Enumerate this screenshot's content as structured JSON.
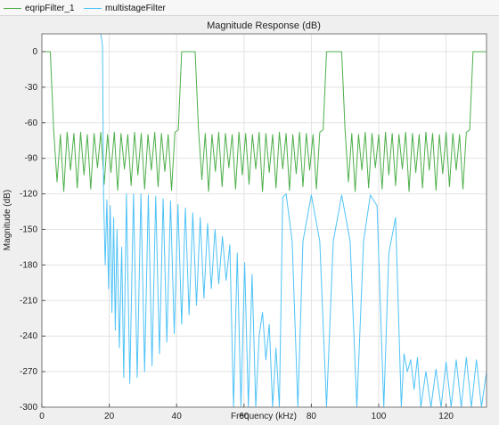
{
  "legend": {
    "series": [
      {
        "label": "eqripFilter_1",
        "color": "#4daf4a"
      },
      {
        "label": "multistageFilter",
        "color": "#4fc3f7"
      }
    ]
  },
  "chart_data": {
    "type": "line",
    "title": "Magnitude Response (dB)",
    "xlabel": "Frequency (kHz)",
    "ylabel": "Magnitude (dB)",
    "xlim": [
      0,
      132
    ],
    "ylim": [
      -300,
      15
    ],
    "xticks": [
      0,
      20,
      40,
      60,
      80,
      100,
      120
    ],
    "yticks": [
      0,
      -30,
      -60,
      -90,
      -120,
      -150,
      -180,
      -210,
      -240,
      -270,
      -300
    ],
    "grid": true,
    "legend_position": "top-left",
    "series": [
      {
        "name": "eqripFilter_1",
        "color": "#4daf4a",
        "points": [
          [
            0,
            0
          ],
          [
            2.5,
            0
          ],
          [
            3.5,
            -66
          ],
          [
            4.5,
            -110
          ],
          [
            5.5,
            -70
          ],
          [
            6.5,
            -118
          ],
          [
            7.5,
            -68
          ],
          [
            8.5,
            -100
          ],
          [
            9.5,
            -69
          ],
          [
            10.5,
            -115
          ],
          [
            11.5,
            -68
          ],
          [
            12.5,
            -104
          ],
          [
            13.5,
            -70
          ],
          [
            14.5,
            -116
          ],
          [
            15.5,
            -69
          ],
          [
            16.5,
            -98
          ],
          [
            17.5,
            -68
          ],
          [
            18.5,
            -112
          ],
          [
            19.5,
            -70
          ],
          [
            20.5,
            -102
          ],
          [
            21.5,
            -68
          ],
          [
            22.5,
            -117
          ],
          [
            23.5,
            -69
          ],
          [
            24.5,
            -99
          ],
          [
            25.5,
            -70
          ],
          [
            26.5,
            -113
          ],
          [
            27.5,
            -68
          ],
          [
            28.5,
            -104
          ],
          [
            29.5,
            -69
          ],
          [
            30.5,
            -116
          ],
          [
            31.5,
            -70
          ],
          [
            32.5,
            -100
          ],
          [
            33.5,
            -68
          ],
          [
            34.5,
            -114
          ],
          [
            35.5,
            -69
          ],
          [
            36.5,
            -101
          ],
          [
            37.5,
            -70
          ],
          [
            38.5,
            -117
          ],
          [
            39.5,
            -68
          ],
          [
            40.5,
            -66
          ],
          [
            41.5,
            0
          ],
          [
            45.5,
            0
          ],
          [
            46.5,
            -66
          ],
          [
            47.5,
            -108
          ],
          [
            48.5,
            -69
          ],
          [
            49.5,
            -118
          ],
          [
            50.5,
            -70
          ],
          [
            51.5,
            -101
          ],
          [
            52.5,
            -68
          ],
          [
            53.5,
            -114
          ],
          [
            54.5,
            -69
          ],
          [
            55.5,
            -98
          ],
          [
            56.5,
            -70
          ],
          [
            57.5,
            -116
          ],
          [
            58.5,
            -68
          ],
          [
            59.5,
            -104
          ],
          [
            60.5,
            -69
          ],
          [
            61.5,
            -112
          ],
          [
            62.5,
            -70
          ],
          [
            63.5,
            -99
          ],
          [
            64.5,
            -68
          ],
          [
            65.5,
            -118
          ],
          [
            66.5,
            -69
          ],
          [
            67.5,
            -102
          ],
          [
            68.5,
            -70
          ],
          [
            69.5,
            -115
          ],
          [
            70.5,
            -68
          ],
          [
            71.5,
            -99
          ],
          [
            72.5,
            -69
          ],
          [
            73.5,
            -117
          ],
          [
            74.5,
            -70
          ],
          [
            75.5,
            -103
          ],
          [
            76.5,
            -68
          ],
          [
            77.5,
            -114
          ],
          [
            78.5,
            -69
          ],
          [
            79.5,
            -100
          ],
          [
            80.5,
            -70
          ],
          [
            81.5,
            -116
          ],
          [
            82.5,
            -68
          ],
          [
            83.5,
            -66
          ],
          [
            84.5,
            0
          ],
          [
            89,
            0
          ],
          [
            90,
            -66
          ],
          [
            91,
            -110
          ],
          [
            92,
            -69
          ],
          [
            93,
            -118
          ],
          [
            94,
            -70
          ],
          [
            95,
            -100
          ],
          [
            96,
            -68
          ],
          [
            97,
            -115
          ],
          [
            98,
            -69
          ],
          [
            99,
            -98
          ],
          [
            100,
            -70
          ],
          [
            101,
            -116
          ],
          [
            102,
            -68
          ],
          [
            103,
            -104
          ],
          [
            104,
            -69
          ],
          [
            105,
            -113
          ],
          [
            106,
            -70
          ],
          [
            107,
            -99
          ],
          [
            108,
            -68
          ],
          [
            109,
            -118
          ],
          [
            110,
            -69
          ],
          [
            111,
            -102
          ],
          [
            112,
            -70
          ],
          [
            113,
            -115
          ],
          [
            114,
            -68
          ],
          [
            115,
            -100
          ],
          [
            116,
            -69
          ],
          [
            117,
            -117
          ],
          [
            118,
            -70
          ],
          [
            119,
            -103
          ],
          [
            120,
            -68
          ],
          [
            121,
            -114
          ],
          [
            122,
            -69
          ],
          [
            123,
            -100
          ],
          [
            124,
            -70
          ],
          [
            125,
            -116
          ],
          [
            126,
            -68
          ],
          [
            127,
            -66
          ],
          [
            128,
            0
          ],
          [
            132,
            0
          ]
        ]
      },
      {
        "name": "multistageFilter",
        "color": "#4fc3f7",
        "points": [
          [
            0,
            15
          ],
          [
            17.5,
            15
          ],
          [
            18,
            5
          ],
          [
            18.3,
            -120
          ],
          [
            18.8,
            -180
          ],
          [
            19.3,
            -125
          ],
          [
            19.8,
            -200
          ],
          [
            20.3,
            -130
          ],
          [
            20.8,
            -220
          ],
          [
            21.3,
            -140
          ],
          [
            21.8,
            -235
          ],
          [
            22.3,
            -150
          ],
          [
            23,
            -250
          ],
          [
            23.7,
            -165
          ],
          [
            24.3,
            -275
          ],
          [
            25.1,
            -120
          ],
          [
            26.1,
            -280
          ],
          [
            27.2,
            -120
          ],
          [
            28.3,
            -275
          ],
          [
            29.4,
            -120
          ],
          [
            30.5,
            -270
          ],
          [
            31.6,
            -121
          ],
          [
            32.7,
            -265
          ],
          [
            33.8,
            -122
          ],
          [
            34.9,
            -255
          ],
          [
            36,
            -124
          ],
          [
            37.1,
            -245
          ],
          [
            38.2,
            -126
          ],
          [
            39.3,
            -238
          ],
          [
            40.4,
            -129
          ],
          [
            41.5,
            -230
          ],
          [
            42.6,
            -132
          ],
          [
            43.7,
            -222
          ],
          [
            44.8,
            -136
          ],
          [
            45.9,
            -214
          ],
          [
            47,
            -140
          ],
          [
            48.1,
            -208
          ],
          [
            49.2,
            -145
          ],
          [
            50.3,
            -200
          ],
          [
            51.4,
            -150
          ],
          [
            52.5,
            -196
          ],
          [
            53.6,
            -156
          ],
          [
            54.7,
            -193
          ],
          [
            55.8,
            -163
          ],
          [
            56.9,
            -300
          ],
          [
            58,
            -170
          ],
          [
            59.1,
            -300
          ],
          [
            60.2,
            -178
          ],
          [
            61.3,
            -300
          ],
          [
            62.4,
            -188
          ],
          [
            63.5,
            -300
          ],
          [
            64.5,
            -240
          ],
          [
            65.5,
            -220
          ],
          [
            66.5,
            -260
          ],
          [
            67.5,
            -230
          ],
          [
            68.5,
            -300
          ],
          [
            69.5,
            -250
          ],
          [
            70.5,
            -300
          ],
          [
            71.5,
            -123
          ],
          [
            72.5,
            -120
          ],
          [
            74.3,
            -160
          ],
          [
            76,
            -300
          ],
          [
            77.5,
            -160
          ],
          [
            80,
            -121
          ],
          [
            82.5,
            -160
          ],
          [
            84.5,
            -300
          ],
          [
            86.5,
            -160
          ],
          [
            89,
            -121
          ],
          [
            91.5,
            -160
          ],
          [
            93.5,
            -300
          ],
          [
            95.5,
            -160
          ],
          [
            97.5,
            -121
          ],
          [
            99.5,
            -130
          ],
          [
            101.5,
            -300
          ],
          [
            103,
            -170
          ],
          [
            105,
            -140
          ],
          [
            106.7,
            -300
          ],
          [
            107.5,
            -255
          ],
          [
            108.5,
            -270
          ],
          [
            109.5,
            -260
          ],
          [
            110.5,
            -285
          ],
          [
            111.5,
            -258
          ],
          [
            112.5,
            -300
          ],
          [
            114,
            -270
          ],
          [
            115.5,
            -300
          ],
          [
            117,
            -268
          ],
          [
            118.5,
            -300
          ],
          [
            120,
            -262
          ],
          [
            121.5,
            -300
          ],
          [
            123,
            -260
          ],
          [
            124.5,
            -300
          ],
          [
            126,
            -258
          ],
          [
            127.5,
            -300
          ],
          [
            129,
            -260
          ],
          [
            130.5,
            -300
          ],
          [
            132,
            -270
          ]
        ]
      }
    ]
  }
}
